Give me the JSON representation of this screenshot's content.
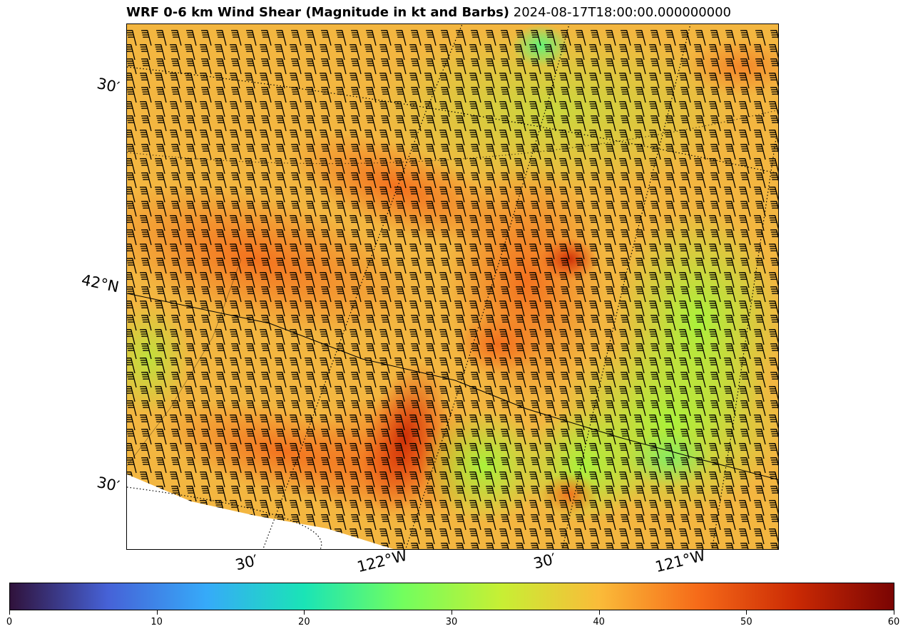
{
  "title": {
    "main": "WRF 0-6 km Wind Shear (Magnitude in kt and Barbs)",
    "time": "2024-08-17T18:00:00.000000000"
  },
  "map": {
    "lat_labels": [
      "30′",
      "42°N",
      "30′"
    ],
    "lon_labels": [
      "30′",
      "122°W",
      "30′",
      "121°W"
    ]
  },
  "colorbar": {
    "min": 0,
    "max": 60,
    "ticks": [
      "0",
      "10",
      "20",
      "30",
      "40",
      "50",
      "60"
    ],
    "colormap": "turbo",
    "colors": [
      "#30123b",
      "#4662d7",
      "#36aaf9",
      "#1ae4b6",
      "#72fe5e",
      "#c7ef34",
      "#fabb39",
      "#f66b19",
      "#cb2a04",
      "#7a0403"
    ]
  }
}
